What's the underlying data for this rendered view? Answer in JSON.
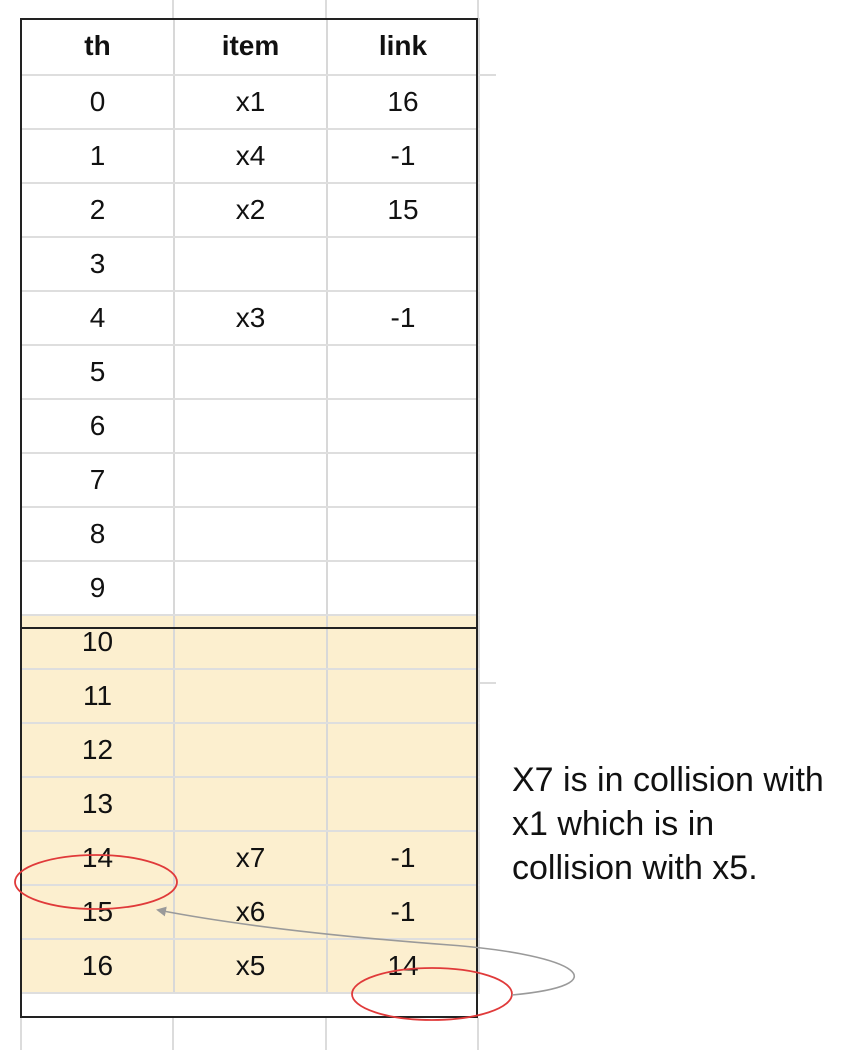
{
  "table": {
    "headers": [
      "th",
      "item",
      "link"
    ],
    "rows": [
      {
        "th": "0",
        "item": "x1",
        "link": "16"
      },
      {
        "th": "1",
        "item": "x4",
        "link": "-1"
      },
      {
        "th": "2",
        "item": "x2",
        "link": "15"
      },
      {
        "th": "3",
        "item": "",
        "link": ""
      },
      {
        "th": "4",
        "item": "x3",
        "link": "-1"
      },
      {
        "th": "5",
        "item": "",
        "link": ""
      },
      {
        "th": "6",
        "item": "",
        "link": ""
      },
      {
        "th": "7",
        "item": "",
        "link": ""
      },
      {
        "th": "8",
        "item": "",
        "link": ""
      },
      {
        "th": "9",
        "item": "",
        "link": ""
      },
      {
        "th": "10",
        "item": "",
        "link": ""
      },
      {
        "th": "11",
        "item": "",
        "link": ""
      },
      {
        "th": "12",
        "item": "",
        "link": ""
      },
      {
        "th": "13",
        "item": "",
        "link": ""
      },
      {
        "th": "14",
        "item": "x7",
        "link": "-1"
      },
      {
        "th": "15",
        "item": "x6",
        "link": "-1"
      },
      {
        "th": "16",
        "item": "x5",
        "link": "14"
      }
    ],
    "highlight_from_row": 10,
    "highlight_color": "#fcefcf"
  },
  "annotation": {
    "note_text": "X7 is in collision with x1 which is in collision with x5.",
    "circle_color": "#e03a3a",
    "arrow_color": "#9a9a9a"
  }
}
